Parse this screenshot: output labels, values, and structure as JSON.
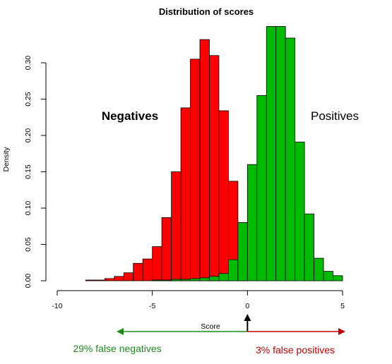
{
  "chart_data": {
    "type": "histogram",
    "title": "Distribution of scores",
    "xlabel": "Score",
    "ylabel": "Density",
    "xlim": [
      -10,
      5
    ],
    "ylim": [
      0,
      0.35
    ],
    "xticks": [
      -10,
      -5,
      0,
      5
    ],
    "yticks": [
      0.0,
      0.05,
      0.1,
      0.15,
      0.2,
      0.25,
      0.3
    ],
    "ytick_labels": [
      "0.00",
      "0.05",
      "0.10",
      "0.15",
      "0.20",
      "0.25",
      "0.30"
    ],
    "bin_width": 0.5,
    "series": [
      {
        "name": "Negatives",
        "color": "#ff0000",
        "bins": [
          {
            "x0": -8.5,
            "x1": -8.0,
            "density": 0.001
          },
          {
            "x0": -8.0,
            "x1": -7.5,
            "density": 0.001
          },
          {
            "x0": -7.5,
            "x1": -7.0,
            "density": 0.003
          },
          {
            "x0": -7.0,
            "x1": -6.5,
            "density": 0.006
          },
          {
            "x0": -6.5,
            "x1": -6.0,
            "density": 0.011
          },
          {
            "x0": -6.0,
            "x1": -5.5,
            "density": 0.024
          },
          {
            "x0": -5.5,
            "x1": -5.0,
            "density": 0.03
          },
          {
            "x0": -5.0,
            "x1": -4.5,
            "density": 0.047
          },
          {
            "x0": -4.5,
            "x1": -4.0,
            "density": 0.087
          },
          {
            "x0": -4.0,
            "x1": -3.5,
            "density": 0.15
          },
          {
            "x0": -3.5,
            "x1": -3.0,
            "density": 0.238
          },
          {
            "x0": -3.0,
            "x1": -2.5,
            "density": 0.305
          },
          {
            "x0": -2.5,
            "x1": -2.0,
            "density": 0.332
          },
          {
            "x0": -2.0,
            "x1": -1.5,
            "density": 0.31
          },
          {
            "x0": -1.5,
            "x1": -1.0,
            "density": 0.234
          },
          {
            "x0": -1.0,
            "x1": -0.5,
            "density": 0.137
          },
          {
            "x0": -0.5,
            "x1": 0.0,
            "density": 0.08
          }
        ]
      },
      {
        "name": "Positives",
        "color": "#00bb00",
        "bins": [
          {
            "x0": -5.0,
            "x1": -4.5,
            "density": 0.001
          },
          {
            "x0": -4.5,
            "x1": -4.0,
            "density": 0.001
          },
          {
            "x0": -4.0,
            "x1": -3.5,
            "density": 0.002
          },
          {
            "x0": -3.5,
            "x1": -3.0,
            "density": 0.002
          },
          {
            "x0": -3.0,
            "x1": -2.5,
            "density": 0.003
          },
          {
            "x0": -2.5,
            "x1": -2.0,
            "density": 0.004
          },
          {
            "x0": -2.0,
            "x1": -1.5,
            "density": 0.006
          },
          {
            "x0": -1.5,
            "x1": -1.0,
            "density": 0.01
          },
          {
            "x0": -1.0,
            "x1": -0.5,
            "density": 0.029
          },
          {
            "x0": -0.5,
            "x1": 0.0,
            "density": 0.08
          },
          {
            "x0": 0.0,
            "x1": 0.5,
            "density": 0.16
          },
          {
            "x0": 0.5,
            "x1": 1.0,
            "density": 0.255
          },
          {
            "x0": 1.0,
            "x1": 1.5,
            "density": 0.35
          },
          {
            "x0": 1.5,
            "x1": 2.0,
            "density": 0.35
          },
          {
            "x0": 2.0,
            "x1": 2.5,
            "density": 0.334
          },
          {
            "x0": 2.5,
            "x1": 3.0,
            "density": 0.191
          },
          {
            "x0": 3.0,
            "x1": 3.5,
            "density": 0.092
          },
          {
            "x0": 3.5,
            "x1": 4.0,
            "density": 0.031
          },
          {
            "x0": 4.0,
            "x1": 4.5,
            "density": 0.013
          },
          {
            "x0": 4.5,
            "x1": 5.0,
            "density": 0.007
          }
        ]
      }
    ],
    "grid": false,
    "threshold": 0,
    "annotations": {
      "negatives_label": "Negatives",
      "positives_label": "Positives",
      "false_negatives": "29% false negatives",
      "false_positives": "3% false positives",
      "false_negatives_color": "#1e8a1e",
      "false_positives_color": "#c00000",
      "threshold_arrow_color": "#000000"
    }
  }
}
